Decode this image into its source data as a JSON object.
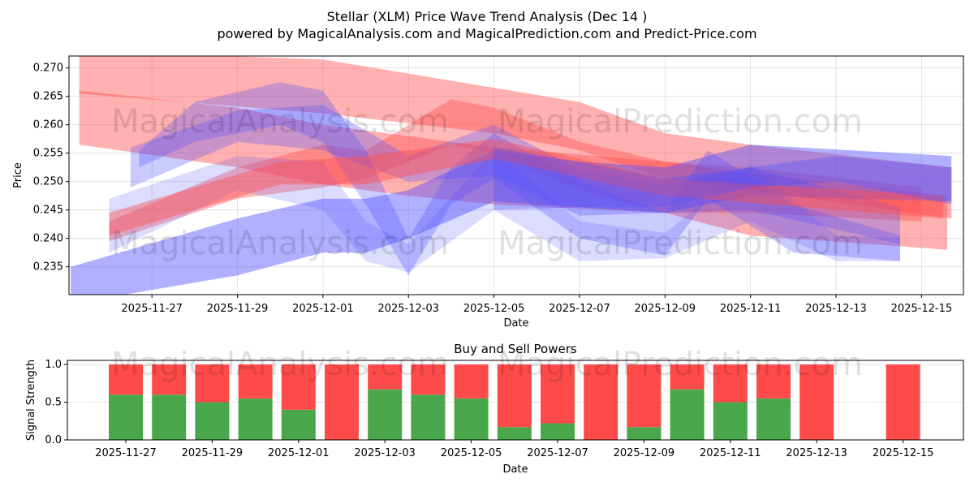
{
  "title": "Stellar (XLM) Price Wave Trend Analysis (Dec 14 )",
  "subtitle": "powered by MagicalAnalysis.com and MagicalPrediction.com and Predict-Price.com",
  "watermarks": [
    "MagicalAnalysis.com",
    "MagicalPrediction.com"
  ],
  "colors": {
    "red": "#ff5050",
    "blue": "#5050ff",
    "green": "#4aa64a",
    "buy": "#4aa64a",
    "sell": "#ff4a4a"
  },
  "chart_data": [
    {
      "type": "area",
      "title": "",
      "xlabel": "Date",
      "ylabel": "Price",
      "x_origin_date": "2025-11-27",
      "xlim_days": [
        -1.94,
        18.98
      ],
      "ylim": [
        0.2301,
        0.2721
      ],
      "grid": true,
      "xticks": [
        "2025-11-27",
        "2025-11-29",
        "2025-12-01",
        "2025-12-03",
        "2025-12-05",
        "2025-12-07",
        "2025-12-09",
        "2025-12-11",
        "2025-12-13",
        "2025-12-15"
      ],
      "xtick_days": [
        0,
        2,
        4,
        6,
        8,
        10,
        12,
        14,
        16,
        18
      ],
      "yticks": [
        "0.235",
        "0.240",
        "0.245",
        "0.250",
        "0.255",
        "0.260",
        "0.265",
        "0.270"
      ],
      "ytick_values": [
        0.235,
        0.24,
        0.245,
        0.25,
        0.255,
        0.26,
        0.265,
        0.27
      ],
      "bands": [
        {
          "color": "red",
          "opacity": 0.45,
          "points": [
            [
              -1.7,
              0.273,
              0.2655
            ],
            [
              4,
              0.2715,
              0.262
            ],
            [
              8,
              0.2665,
              0.2585
            ],
            [
              10,
              0.264,
              0.2555
            ],
            [
              12,
              0.2585,
              0.2505
            ],
            [
              14,
              0.2565,
              0.2485
            ],
            [
              18.7,
              0.2525,
              0.2435
            ]
          ]
        },
        {
          "color": "red",
          "opacity": 0.45,
          "points": [
            [
              -1.7,
              0.266,
              0.2565
            ],
            [
              2,
              0.263,
              0.2525
            ],
            [
              4,
              0.26,
              0.2495
            ],
            [
              6,
              0.258,
              0.2475
            ],
            [
              8,
              0.256,
              0.246
            ],
            [
              12,
              0.2535,
              0.2445
            ],
            [
              14,
              0.2515,
              0.2405
            ],
            [
              18.6,
              0.2475,
              0.238
            ]
          ]
        },
        {
          "color": "red",
          "opacity": 0.4,
          "points": [
            [
              -1,
              0.243,
              0.2395
            ],
            [
              2,
              0.2525,
              0.247
            ],
            [
              4,
              0.2565,
              0.249
            ],
            [
              5,
              0.2555,
              0.2505
            ],
            [
              7,
              0.2645,
              0.2565
            ],
            [
              8,
              0.263,
              0.255
            ],
            [
              10,
              0.257,
              0.2485
            ],
            [
              12,
              0.2535,
              0.2445
            ],
            [
              14,
              0.2525,
              0.2445
            ],
            [
              18,
              0.249,
              0.243
            ]
          ]
        },
        {
          "color": "blue",
          "opacity": 0.45,
          "points": [
            [
              -1.9,
              0.235,
              0.2285
            ],
            [
              2,
              0.2435,
              0.2335
            ],
            [
              4,
              0.247,
              0.2375
            ],
            [
              5,
              0.247,
              0.2375
            ],
            [
              6,
              0.2485,
              0.24
            ],
            [
              8,
              0.2555,
              0.2465
            ],
            [
              10,
              0.2535,
              0.2455
            ],
            [
              12,
              0.2525,
              0.2445
            ],
            [
              14,
              0.2565,
              0.2475
            ],
            [
              18.7,
              0.2545,
              0.2465
            ]
          ]
        },
        {
          "color": "blue",
          "opacity": 0.3,
          "points": [
            [
              -0.3,
              0.2555,
              0.2525
            ],
            [
              1,
              0.264,
              0.257
            ],
            [
              3,
              0.2675,
              0.26
            ],
            [
              4,
              0.266,
              0.257
            ],
            [
              5,
              0.2555,
              0.246
            ],
            [
              6,
              0.24,
              0.2335
            ],
            [
              7,
              0.2525,
              0.246
            ],
            [
              8,
              0.2585,
              0.2505
            ],
            [
              10,
              0.25,
              0.24
            ],
            [
              12,
              0.2445,
              0.237
            ],
            [
              13,
              0.2555,
              0.247
            ],
            [
              15,
              0.246,
              0.2375
            ],
            [
              17.5,
              0.2405,
              0.236
            ]
          ]
        },
        {
          "color": "blue",
          "opacity": 0.2,
          "points": [
            [
              -1,
              0.247,
              0.2375
            ],
            [
              2,
              0.2545,
              0.2485
            ],
            [
              4,
              0.2535,
              0.245
            ],
            [
              5,
              0.243,
              0.236
            ],
            [
              6,
              0.239,
              0.234
            ],
            [
              8,
              0.2555,
              0.245
            ],
            [
              10,
              0.243,
              0.236
            ],
            [
              12,
              0.241,
              0.2365
            ],
            [
              14,
              0.253,
              0.243
            ],
            [
              16,
              0.2405,
              0.236
            ],
            [
              17.5,
              0.24,
              0.236
            ]
          ]
        },
        {
          "color": "blue",
          "opacity": 0.3,
          "points": [
            [
              -0.5,
              0.256,
              0.249
            ],
            [
              2,
              0.2625,
              0.257
            ],
            [
              4,
              0.2635,
              0.2555
            ],
            [
              6,
              0.2545,
              0.25
            ],
            [
              8,
              0.26,
              0.251
            ],
            [
              10,
              0.252,
              0.244
            ],
            [
              12,
              0.2495,
              0.2445
            ],
            [
              14,
              0.2525,
              0.245
            ],
            [
              17.5,
              0.2455,
              0.239
            ]
          ]
        },
        {
          "color": "red",
          "opacity": 0.45,
          "points": [
            [
              -1,
              0.2445,
              0.2405
            ],
            [
              3,
              0.2535,
              0.2495
            ],
            [
              5,
              0.2545,
              0.2495
            ],
            [
              8,
              0.2575,
              0.254
            ],
            [
              12,
              0.2505,
              0.2475
            ],
            [
              18.5,
              0.2475,
              0.2435
            ]
          ]
        },
        {
          "color": "blue",
          "opacity": 0.35,
          "points": [
            [
              8,
              0.256,
              0.245
            ],
            [
              10,
              0.2535,
              0.2455
            ],
            [
              12,
              0.2505,
              0.2455
            ],
            [
              14,
              0.2525,
              0.249
            ],
            [
              16,
              0.2545,
              0.25
            ],
            [
              18.7,
              0.2525,
              0.246
            ]
          ]
        }
      ]
    },
    {
      "type": "bar",
      "title": "Buy and Sell Powers",
      "xlabel": "Date",
      "ylabel": "Signal Strength",
      "ylim": [
        0,
        1.054
      ],
      "yticks": [
        "0.0",
        "0.5",
        "1.0"
      ],
      "ytick_values": [
        0,
        0.5,
        1.0
      ],
      "xticks": [
        "2025-11-27",
        "2025-11-29",
        "2025-12-01",
        "2025-12-03",
        "2025-12-05",
        "2025-12-07",
        "2025-12-09",
        "2025-12-11",
        "2025-12-13",
        "2025-12-15"
      ],
      "xtick_days": [
        0,
        2,
        4,
        6,
        8,
        10,
        12,
        14,
        16,
        18
      ],
      "bar_days": [
        0,
        1,
        2,
        3,
        4,
        5,
        6,
        7,
        8,
        9,
        10,
        11,
        12,
        13,
        14,
        15,
        16,
        18
      ],
      "series": [
        {
          "name": "Buy",
          "color": "green",
          "values": [
            0.6,
            0.6,
            0.5,
            0.55,
            0.4,
            0,
            0.67,
            0.6,
            0.55,
            0.17,
            0.22,
            0,
            0.17,
            0.67,
            0.5,
            0.55,
            0,
            0
          ]
        },
        {
          "name": "Sell",
          "color": "red",
          "values": [
            0.4,
            0.4,
            0.5,
            0.45,
            0.6,
            1,
            0.33,
            0.4,
            0.45,
            0.83,
            0.78,
            1,
            0.83,
            0.33,
            0.5,
            0.45,
            1,
            1
          ]
        }
      ]
    }
  ]
}
